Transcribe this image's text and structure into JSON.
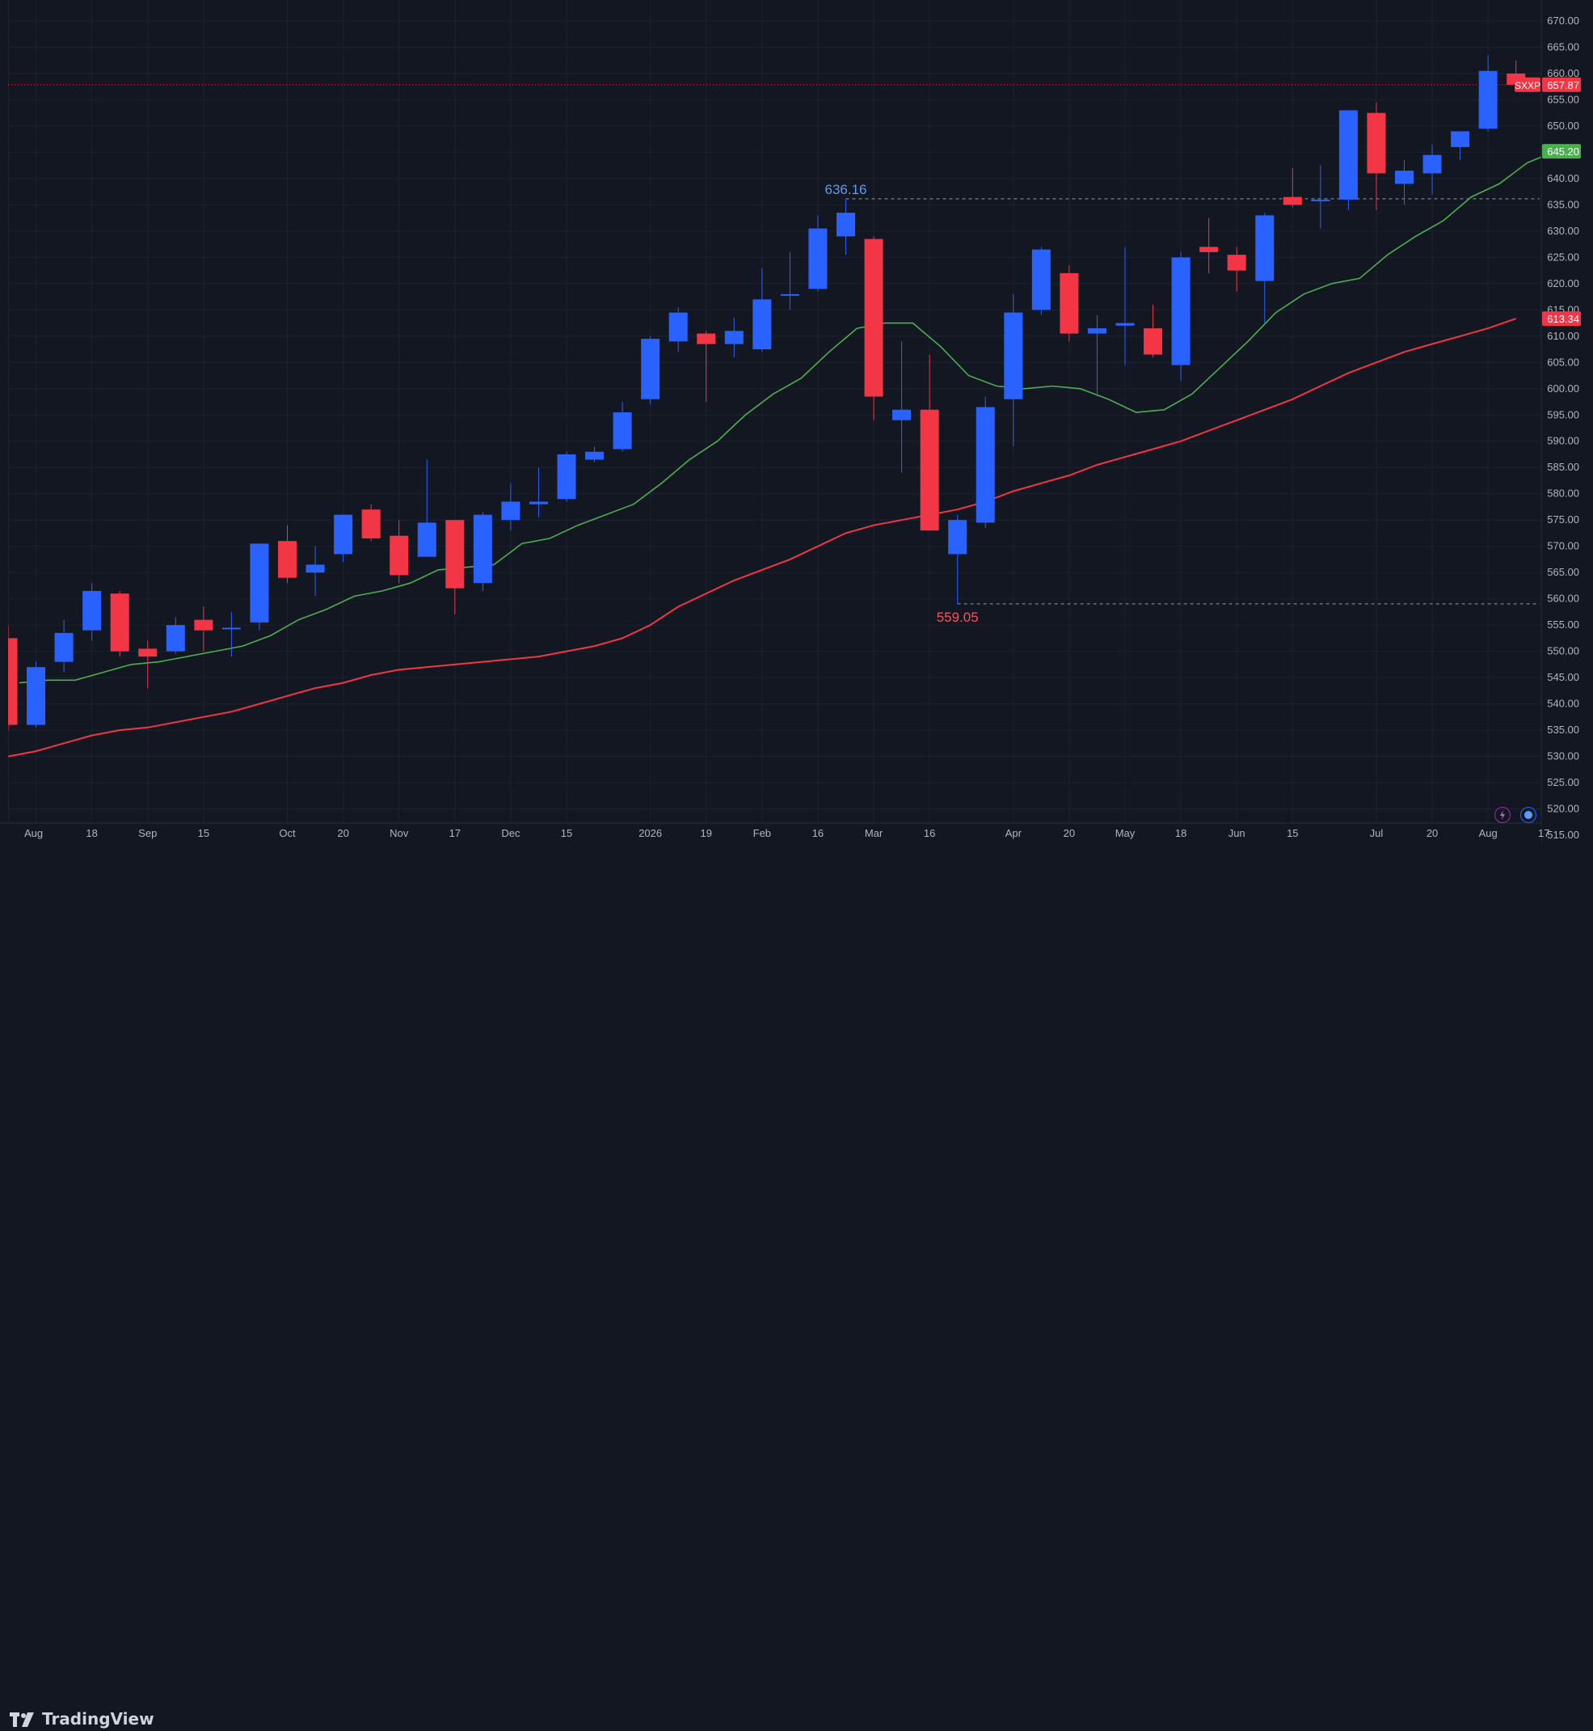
{
  "chart_data": {
    "type": "candlestick",
    "symbol": "SXXP",
    "interval": "weekly",
    "ylim": [
      513,
      674
    ],
    "y_ticks": [
      515,
      520,
      525,
      530,
      535,
      540,
      545,
      550,
      555,
      560,
      565,
      570,
      575,
      580,
      585,
      590,
      595,
      600,
      605,
      610,
      615,
      620,
      625,
      630,
      635,
      640,
      645,
      650,
      655,
      660,
      665,
      670
    ],
    "x_ticks": [
      {
        "label": "Aug",
        "i": 1
      },
      {
        "label": "18",
        "i": 3
      },
      {
        "label": "Sep",
        "i": 5
      },
      {
        "label": "15",
        "i": 7
      },
      {
        "label": "Oct",
        "i": 10
      },
      {
        "label": "20",
        "i": 12
      },
      {
        "label": "Nov",
        "i": 14
      },
      {
        "label": "17",
        "i": 16
      },
      {
        "label": "Dec",
        "i": 18
      },
      {
        "label": "15",
        "i": 20
      },
      {
        "label": "2026",
        "i": 23
      },
      {
        "label": "19",
        "i": 25
      },
      {
        "label": "Feb",
        "i": 27
      },
      {
        "label": "16",
        "i": 29
      },
      {
        "label": "Mar",
        "i": 31
      },
      {
        "label": "16",
        "i": 33
      },
      {
        "label": "Apr",
        "i": 36
      },
      {
        "label": "20",
        "i": 38
      },
      {
        "label": "May",
        "i": 40
      },
      {
        "label": "18",
        "i": 42
      },
      {
        "label": "Jun",
        "i": 44
      },
      {
        "label": "15",
        "i": 46
      },
      {
        "label": "Jul",
        "i": 49
      },
      {
        "label": "20",
        "i": 51
      },
      {
        "label": "Aug",
        "i": 53
      },
      {
        "label": "17",
        "i": 55
      }
    ],
    "candles": [
      {
        "o": 552.5,
        "h": 555.0,
        "l": 535.0,
        "c": 536.0
      },
      {
        "o": 536.0,
        "h": 548.0,
        "l": 535.5,
        "c": 547.0
      },
      {
        "o": 548.0,
        "h": 556.0,
        "l": 546.0,
        "c": 553.5
      },
      {
        "o": 554.0,
        "h": 563.0,
        "l": 552.0,
        "c": 561.5
      },
      {
        "o": 561.0,
        "h": 561.5,
        "l": 549.0,
        "c": 550.0
      },
      {
        "o": 550.5,
        "h": 552.0,
        "l": 543.0,
        "c": 549.0
      },
      {
        "o": 550.0,
        "h": 556.5,
        "l": 549.5,
        "c": 555.0
      },
      {
        "o": 556.0,
        "h": 558.5,
        "l": 550.0,
        "c": 554.0
      },
      {
        "o": 554.5,
        "h": 557.5,
        "l": 549.0,
        "c": 554.5
      },
      {
        "o": 555.5,
        "h": 570.5,
        "l": 554.0,
        "c": 570.5
      },
      {
        "o": 571.0,
        "h": 574.0,
        "l": 563.0,
        "c": 564.0
      },
      {
        "o": 565.0,
        "h": 570.0,
        "l": 560.5,
        "c": 566.5
      },
      {
        "o": 568.5,
        "h": 576.0,
        "l": 567.0,
        "c": 576.0
      },
      {
        "o": 577.0,
        "h": 578.0,
        "l": 571.0,
        "c": 571.5
      },
      {
        "o": 572.0,
        "h": 575.0,
        "l": 563.0,
        "c": 564.5
      },
      {
        "o": 568.0,
        "h": 586.5,
        "l": 568.0,
        "c": 574.5
      },
      {
        "o": 575.0,
        "h": 575.0,
        "l": 557.0,
        "c": 562.0
      },
      {
        "o": 563.0,
        "h": 576.5,
        "l": 561.5,
        "c": 576.0
      },
      {
        "o": 575.0,
        "h": 582.0,
        "l": 573.0,
        "c": 578.5
      },
      {
        "o": 578.0,
        "h": 585.0,
        "l": 575.5,
        "c": 578.5
      },
      {
        "o": 579.0,
        "h": 588.0,
        "l": 578.5,
        "c": 587.5
      },
      {
        "o": 586.5,
        "h": 589.0,
        "l": 586.0,
        "c": 588.0
      },
      {
        "o": 588.5,
        "h": 597.5,
        "l": 588.0,
        "c": 595.5
      },
      {
        "o": 598.0,
        "h": 610.0,
        "l": 597.0,
        "c": 609.5
      },
      {
        "o": 609.0,
        "h": 615.5,
        "l": 607.0,
        "c": 614.5
      },
      {
        "o": 610.5,
        "h": 611.0,
        "l": 597.5,
        "c": 608.5
      },
      {
        "o": 608.5,
        "h": 613.5,
        "l": 606.0,
        "c": 611.0
      },
      {
        "o": 607.5,
        "h": 623.0,
        "l": 607.0,
        "c": 617.0
      },
      {
        "o": 618.0,
        "h": 626.0,
        "l": 615.0,
        "c": 618.0
      },
      {
        "o": 619.0,
        "h": 633.0,
        "l": 618.5,
        "c": 630.5
      },
      {
        "o": 629.0,
        "h": 636.16,
        "l": 625.5,
        "c": 633.5
      },
      {
        "o": 628.5,
        "h": 629.0,
        "l": 594.0,
        "c": 598.5
      },
      {
        "o": 594.0,
        "h": 609.0,
        "l": 584.0,
        "c": 596.0
      },
      {
        "o": 596.0,
        "h": 606.5,
        "l": 573.0,
        "c": 573.0
      },
      {
        "o": 568.5,
        "h": 576.0,
        "l": 559.05,
        "c": 575.0
      },
      {
        "o": 574.5,
        "h": 598.5,
        "l": 573.5,
        "c": 596.5
      },
      {
        "o": 598.0,
        "h": 618.0,
        "l": 589.0,
        "c": 614.5
      },
      {
        "o": 615.0,
        "h": 627.0,
        "l": 614.0,
        "c": 626.5
      },
      {
        "o": 622.0,
        "h": 623.5,
        "l": 609.0,
        "c": 610.5
      },
      {
        "o": 610.5,
        "h": 614.0,
        "l": 598.5,
        "c": 611.5
      },
      {
        "o": 612.0,
        "h": 627.0,
        "l": 604.5,
        "c": 612.5
      },
      {
        "o": 611.5,
        "h": 616.0,
        "l": 606.0,
        "c": 606.5
      },
      {
        "o": 604.5,
        "h": 626.0,
        "l": 601.5,
        "c": 625.0
      },
      {
        "o": 627.0,
        "h": 632.5,
        "l": 622.0,
        "c": 626.0
      },
      {
        "o": 625.5,
        "h": 627.0,
        "l": 618.5,
        "c": 622.5
      },
      {
        "o": 620.5,
        "h": 633.5,
        "l": 612.5,
        "c": 633.0
      },
      {
        "o": 636.5,
        "h": 642.0,
        "l": 634.5,
        "c": 635.0
      },
      {
        "o": 636.0,
        "h": 642.5,
        "l": 630.5,
        "c": 636.0
      },
      {
        "o": 636.0,
        "h": 653.0,
        "l": 634.0,
        "c": 653.0
      },
      {
        "o": 652.5,
        "h": 654.5,
        "l": 634.0,
        "c": 641.0
      },
      {
        "o": 639.0,
        "h": 643.5,
        "l": 635.0,
        "c": 641.5
      },
      {
        "o": 641.0,
        "h": 646.5,
        "l": 637.0,
        "c": 644.5
      },
      {
        "o": 646.0,
        "h": 649.0,
        "l": 643.5,
        "c": 649.0
      },
      {
        "o": 649.5,
        "h": 663.5,
        "l": 649.0,
        "c": 660.5
      },
      {
        "o": 660.0,
        "h": 662.5,
        "l": 657.5,
        "c": 657.87
      }
    ],
    "ma_fast": [
      544.0,
      544.5,
      544.5,
      546.0,
      547.5,
      548.0,
      549.0,
      550.0,
      551.0,
      553.0,
      556.0,
      558.0,
      560.5,
      561.5,
      563.0,
      565.5,
      566.0,
      566.5,
      570.5,
      571.5,
      574.0,
      576.0,
      578.0,
      582.0,
      586.5,
      590.0,
      595.0,
      599.0,
      602.0,
      607.0,
      611.5,
      612.5,
      612.5,
      608.0,
      602.5,
      600.5,
      600.0,
      600.5,
      600.0,
      598.0,
      595.5,
      596.0,
      599.0,
      604.0,
      609.0,
      614.5,
      618.0,
      620.0,
      621.0,
      625.5,
      629.0,
      632.0,
      636.5,
      639.0,
      643.0,
      645.2
    ],
    "ma_slow": [
      530.0,
      531.0,
      532.5,
      534.0,
      535.0,
      535.5,
      536.5,
      537.5,
      538.5,
      540.0,
      541.5,
      543.0,
      544.0,
      545.5,
      546.5,
      547.0,
      547.5,
      548.0,
      548.5,
      549.0,
      550.0,
      551.0,
      552.5,
      555.0,
      558.5,
      561.0,
      563.5,
      565.5,
      567.5,
      570.0,
      572.5,
      574.0,
      575.0,
      576.0,
      577.0,
      578.5,
      580.5,
      582.0,
      583.5,
      585.5,
      587.0,
      588.5,
      590.0,
      592.0,
      594.0,
      596.0,
      598.0,
      600.5,
      603.0,
      605.0,
      607.0,
      608.5,
      610.0,
      611.5,
      613.34
    ],
    "ma_fast_start": 0.4,
    "ma_slow_start": 0,
    "annotations": [
      {
        "type": "high",
        "label": "636.16",
        "value": 636.16,
        "i": 30
      },
      {
        "type": "low",
        "label": "559.05",
        "value": 559.05,
        "i": 34
      }
    ],
    "price_tags": [
      {
        "label": "657.87",
        "value": 657.87,
        "color": "#f23645",
        "symbol": "SXXP"
      },
      {
        "label": "645.20",
        "value": 645.2,
        "color": "#4caf50"
      },
      {
        "label": "613.34",
        "value": 613.34,
        "color": "#f23645"
      }
    ],
    "colors": {
      "background": "#131722",
      "grid": "#1e2230",
      "up": "#2962ff",
      "down": "#f23645",
      "ma_fast": "#4caf50",
      "ma_slow": "#f23645",
      "axis_text": "#b2b5be",
      "high_label": "#5b9cf6",
      "low_label": "#f7525f"
    }
  },
  "footer": {
    "brand": "TradingView"
  }
}
